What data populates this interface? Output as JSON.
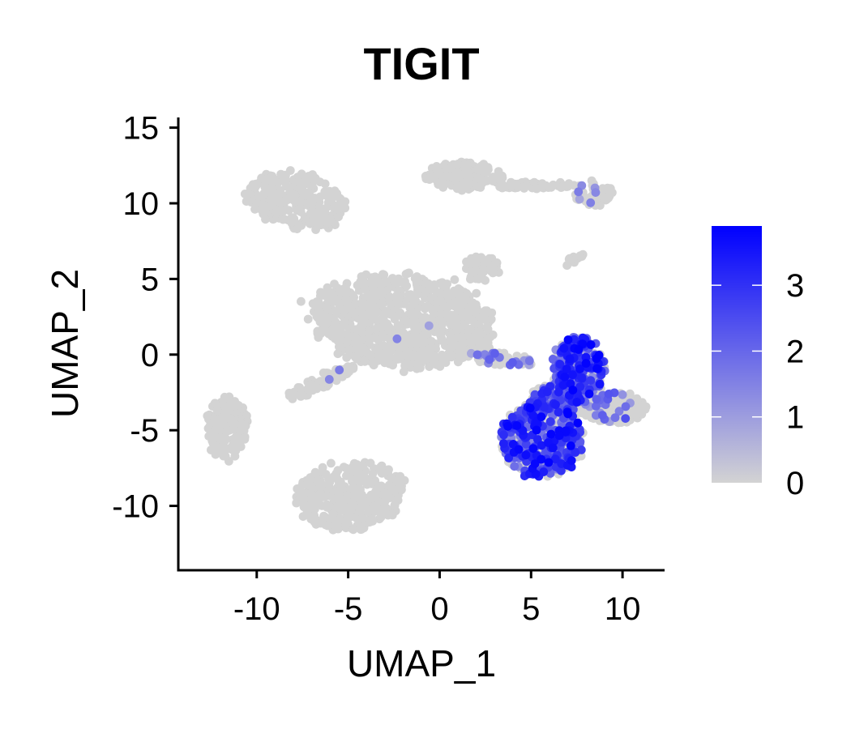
{
  "chart_data": {
    "type": "scatter",
    "title": "TIGIT",
    "xlabel": "UMAP_1",
    "ylabel": "UMAP_2",
    "xlim": [
      -14.2,
      12.3
    ],
    "ylim": [
      -14.2,
      15.3
    ],
    "x_ticks": [
      -10,
      -5,
      0,
      5,
      10
    ],
    "y_ticks": [
      15,
      10,
      5,
      0,
      -5,
      -10
    ],
    "colors": {
      "low": "#d3d3d3",
      "high": "#0000ff"
    },
    "legend": {
      "placement": "right",
      "min": 0,
      "max": 3.9,
      "ticks": [
        0,
        1,
        2,
        3
      ]
    },
    "clusters": [
      {
        "id": "top-left",
        "cx": -7.8,
        "cy": 10.2,
        "rx": 2.8,
        "ry": 1.8,
        "rot": -0.25,
        "n": 260,
        "expr_frac": 0.0,
        "expr_max": 0.0
      },
      {
        "id": "top-mid",
        "cx": 1.3,
        "cy": 11.8,
        "rx": 2.1,
        "ry": 0.9,
        "rot": 0.0,
        "n": 160,
        "expr_frac": 0.0,
        "expr_max": 0.0
      },
      {
        "id": "top-bridge",
        "cx": 5.2,
        "cy": 11.2,
        "rx": 2.2,
        "ry": 0.25,
        "rot": 0.0,
        "n": 60,
        "expr_frac": 0.0,
        "expr_max": 0.0
      },
      {
        "id": "top-right",
        "cx": 8.4,
        "cy": 10.7,
        "rx": 1.0,
        "ry": 0.9,
        "rot": 0.0,
        "n": 60,
        "expr_frac": 0.12,
        "expr_max": 2.0
      },
      {
        "id": "central",
        "cx": -2.0,
        "cy": 2.2,
        "rx": 5.0,
        "ry": 3.0,
        "rot": -0.12,
        "n": 900,
        "expr_frac": 0.004,
        "expr_max": 1.5
      },
      {
        "id": "central-arm-left",
        "cx": -6.5,
        "cy": -1.8,
        "rx": 2.2,
        "ry": 0.45,
        "rot": 0.55,
        "n": 80,
        "expr_frac": 0.02,
        "expr_max": 2.0
      },
      {
        "id": "central-arm-right",
        "cx": 3.4,
        "cy": -0.3,
        "rx": 1.8,
        "ry": 0.4,
        "rot": -0.1,
        "n": 70,
        "expr_frac": 0.25,
        "expr_max": 2.5
      },
      {
        "id": "small-top",
        "cx": 2.3,
        "cy": 5.7,
        "rx": 0.9,
        "ry": 0.85,
        "rot": 0.0,
        "n": 50,
        "expr_frac": 0.02,
        "expr_max": 1.5
      },
      {
        "id": "small-right",
        "cx": 7.2,
        "cy": 6.2,
        "rx": 0.7,
        "ry": 0.18,
        "rot": 0.6,
        "n": 14,
        "expr_frac": 0.0,
        "expr_max": 0.0
      },
      {
        "id": "left",
        "cx": -11.6,
        "cy": -4.8,
        "rx": 1.1,
        "ry": 2.0,
        "rot": 0.0,
        "n": 180,
        "expr_frac": 0.0,
        "expr_max": 0.0
      },
      {
        "id": "bottom",
        "cx": -4.8,
        "cy": -9.3,
        "rx": 3.0,
        "ry": 2.2,
        "rot": 0.1,
        "n": 320,
        "expr_frac": 0.0,
        "expr_max": 0.0
      },
      {
        "id": "tcell-upper",
        "cx": 7.6,
        "cy": -1.0,
        "rx": 1.4,
        "ry": 2.2,
        "rot": 0.0,
        "n": 340,
        "expr_frac": 0.5,
        "expr_max": 3.9
      },
      {
        "id": "tcell-right",
        "cx": 9.4,
        "cy": -3.5,
        "rx": 1.8,
        "ry": 1.0,
        "rot": 0.0,
        "n": 240,
        "expr_frac": 0.12,
        "expr_max": 2.5
      },
      {
        "id": "tcell-lower",
        "cx": 5.6,
        "cy": -5.6,
        "rx": 2.2,
        "ry": 2.4,
        "rot": -0.15,
        "n": 520,
        "expr_frac": 0.55,
        "expr_max": 3.9
      },
      {
        "id": "tcell-link",
        "cx": 6.3,
        "cy": -3.0,
        "rx": 1.3,
        "ry": 1.0,
        "rot": 0.0,
        "n": 150,
        "expr_frac": 0.4,
        "expr_max": 3.4
      }
    ]
  }
}
